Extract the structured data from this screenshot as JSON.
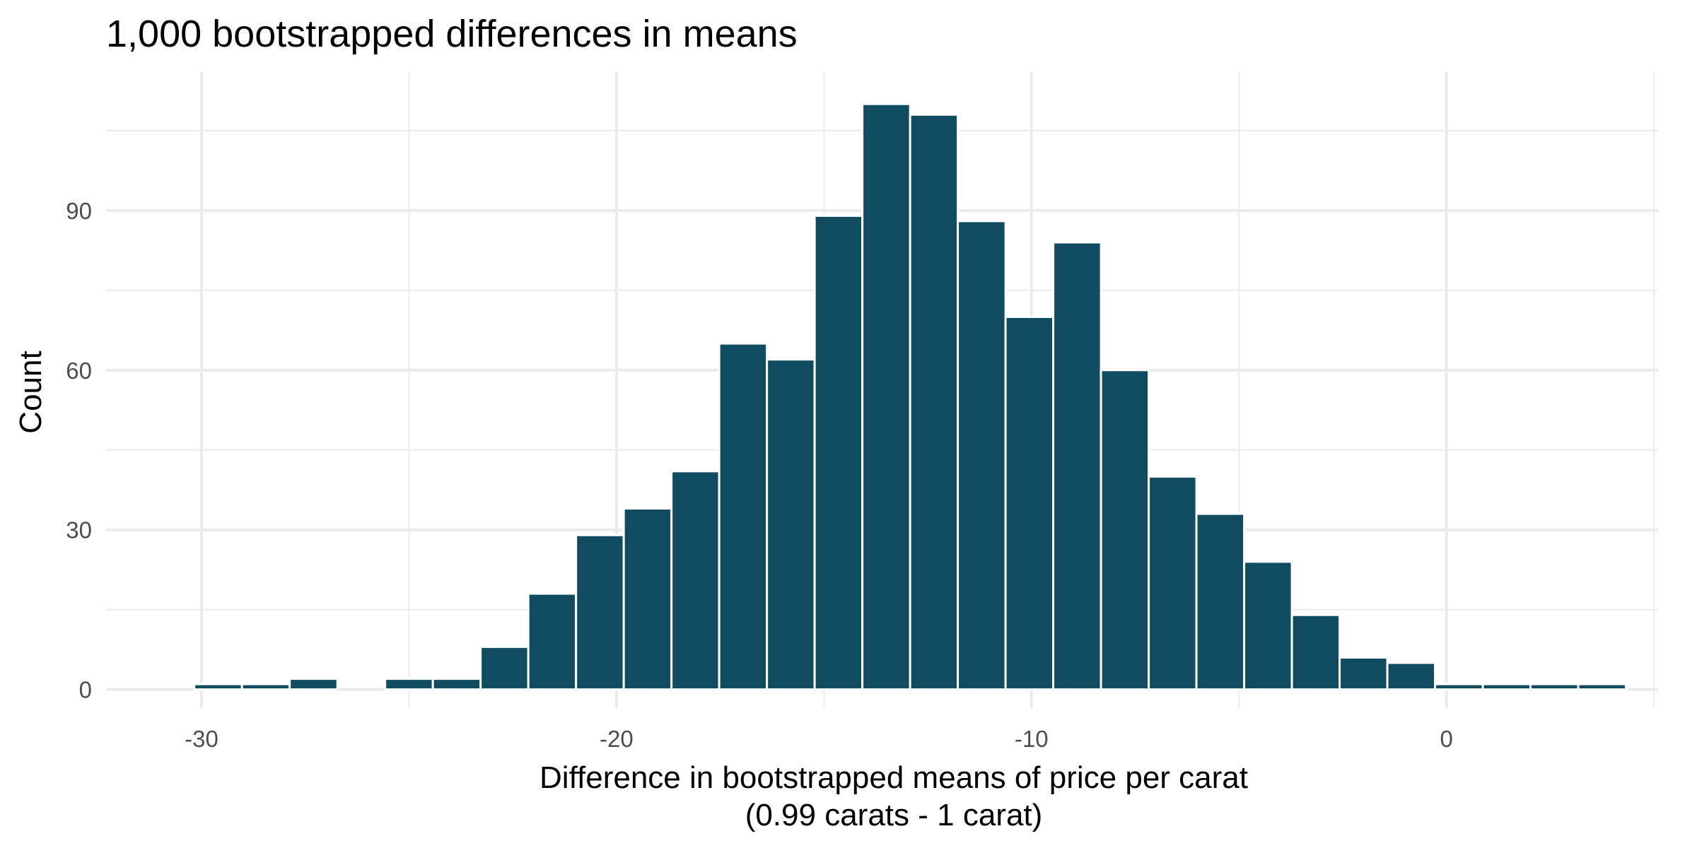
{
  "chart_data": {
    "type": "bar",
    "title": "1,000 bootstrapped differences in means",
    "xlabel_line1": "Difference in bootstrapped means of price per carat",
    "xlabel_line2": "(0.99 carats - 1 carat)",
    "ylabel": "Count",
    "bar_color": "#114b5f",
    "grid": true,
    "bin_width": 1.15,
    "bin_centers": [
      -29.6,
      -28.45,
      -27.3,
      -26.15,
      -25.0,
      -23.85,
      -22.7,
      -21.55,
      -20.4,
      -19.25,
      -18.1,
      -16.95,
      -15.8,
      -14.65,
      -13.5,
      -12.35,
      -11.2,
      -10.05,
      -8.9,
      -7.75,
      -6.6,
      -5.45,
      -4.3,
      -3.15,
      -2.0,
      -0.85,
      0.3,
      1.45,
      2.6,
      3.75
    ],
    "values": [
      1,
      1,
      2,
      0,
      2,
      2,
      8,
      18,
      29,
      34,
      41,
      65,
      62,
      89,
      110,
      108,
      88,
      70,
      84,
      60,
      40,
      33,
      24,
      14,
      6,
      5,
      1,
      1,
      1,
      1
    ],
    "xlim": [
      -32.3,
      5.1
    ],
    "ylim": [
      -3.5,
      116
    ],
    "x_ticks": [
      -30,
      -20,
      -10,
      0
    ],
    "x_tick_labels": [
      "-30",
      "-20",
      "-10",
      "0"
    ],
    "x_minor_ticks": [
      -25,
      -15,
      -5,
      5
    ],
    "y_ticks": [
      0,
      30,
      60,
      90
    ],
    "y_tick_labels": [
      "0",
      "30",
      "60",
      "90"
    ],
    "y_minor_ticks": [
      15,
      45,
      75,
      105
    ]
  }
}
